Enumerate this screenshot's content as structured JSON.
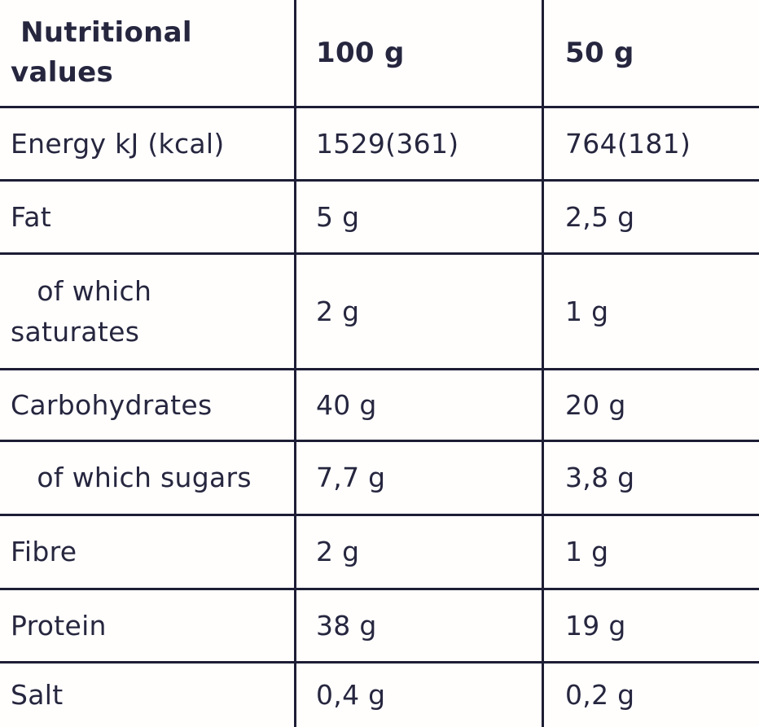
{
  "table": {
    "header": {
      "label": " Nutritional\nvalues",
      "col_100g": "100 g",
      "col_50g": "50 g"
    },
    "rows": [
      {
        "label": "Energy kJ (kcal)",
        "per_100g": "1529(361)",
        "per_50g": "764(181)"
      },
      {
        "label": "Fat",
        "per_100g": "5 g",
        "per_50g": "2,5 g"
      },
      {
        "label": "   of which\nsaturates",
        "per_100g": "2 g",
        "per_50g": "1 g"
      },
      {
        "label": "Carbohydrates",
        "per_100g": "40 g",
        "per_50g": "20 g"
      },
      {
        "label": "   of which sugars",
        "per_100g": "7,7 g",
        "per_50g": "3,8 g"
      },
      {
        "label": "Fibre",
        "per_100g": "2 g",
        "per_50g": "1 g"
      },
      {
        "label": "Protein",
        "per_100g": "38 g",
        "per_50g": "19 g"
      },
      {
        "label": "Salt",
        "per_100g": "0,4 g",
        "per_50g": "0,2 g"
      }
    ],
    "colors": {
      "text": "#26263f",
      "border": "#1d1d35",
      "background": "#fffefd"
    }
  }
}
